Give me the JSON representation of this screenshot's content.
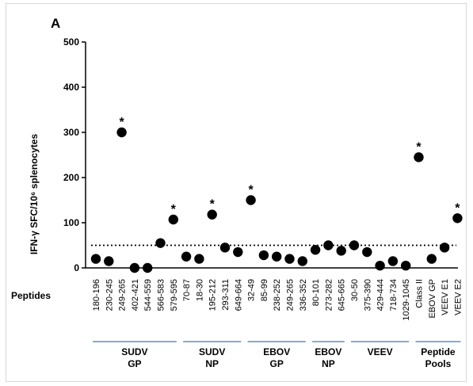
{
  "panel_label": "A",
  "row_label": "Peptides",
  "colors": {
    "marker": "#000000",
    "group_underline": "#5b8fd0",
    "threshold": "#000000"
  },
  "chart_data": {
    "type": "scatter",
    "ylabel": "IFN-γ SFC/10⁶ splenocytes",
    "ylim": [
      0,
      500
    ],
    "yticks": [
      0,
      100,
      200,
      300,
      400,
      500
    ],
    "threshold": 50,
    "categories": [
      "180-196",
      "230-245",
      "249-265",
      "402-421",
      "544-559",
      "566-583",
      "579-595",
      "70-87",
      "18-30",
      "195-212",
      "293-311",
      "649-664",
      "32-49",
      "85-99",
      "238-252",
      "249-265",
      "336-352",
      "80-101",
      "273-282",
      "645-665",
      "30-50",
      "375-390",
      "429-444",
      "718-734",
      "1029-1045",
      "Class II",
      "EBOV GP",
      "VEEV E1",
      "VEEV E2"
    ],
    "values": [
      20,
      15,
      300,
      0,
      0,
      55,
      107,
      25,
      20,
      118,
      45,
      35,
      150,
      28,
      25,
      20,
      15,
      40,
      50,
      38,
      50,
      35,
      5,
      15,
      5,
      245,
      20,
      45,
      110
    ],
    "significant": [
      false,
      false,
      true,
      false,
      false,
      false,
      true,
      false,
      false,
      true,
      false,
      false,
      true,
      false,
      false,
      false,
      false,
      false,
      false,
      false,
      false,
      false,
      false,
      false,
      false,
      true,
      false,
      false,
      true
    ],
    "groups": [
      {
        "label": [
          "SUDV",
          "GP"
        ],
        "start": 0,
        "end": 6
      },
      {
        "label": [
          "SUDV",
          "NP"
        ],
        "start": 7,
        "end": 11
      },
      {
        "label": [
          "EBOV",
          "GP"
        ],
        "start": 12,
        "end": 16
      },
      {
        "label": [
          "EBOV",
          "NP"
        ],
        "start": 17,
        "end": 19
      },
      {
        "label": [
          "VEEV"
        ],
        "start": 20,
        "end": 24
      },
      {
        "label": [
          "Peptide",
          "Pools"
        ],
        "start": 25,
        "end": 28
      }
    ],
    "star_symbol": "*"
  }
}
